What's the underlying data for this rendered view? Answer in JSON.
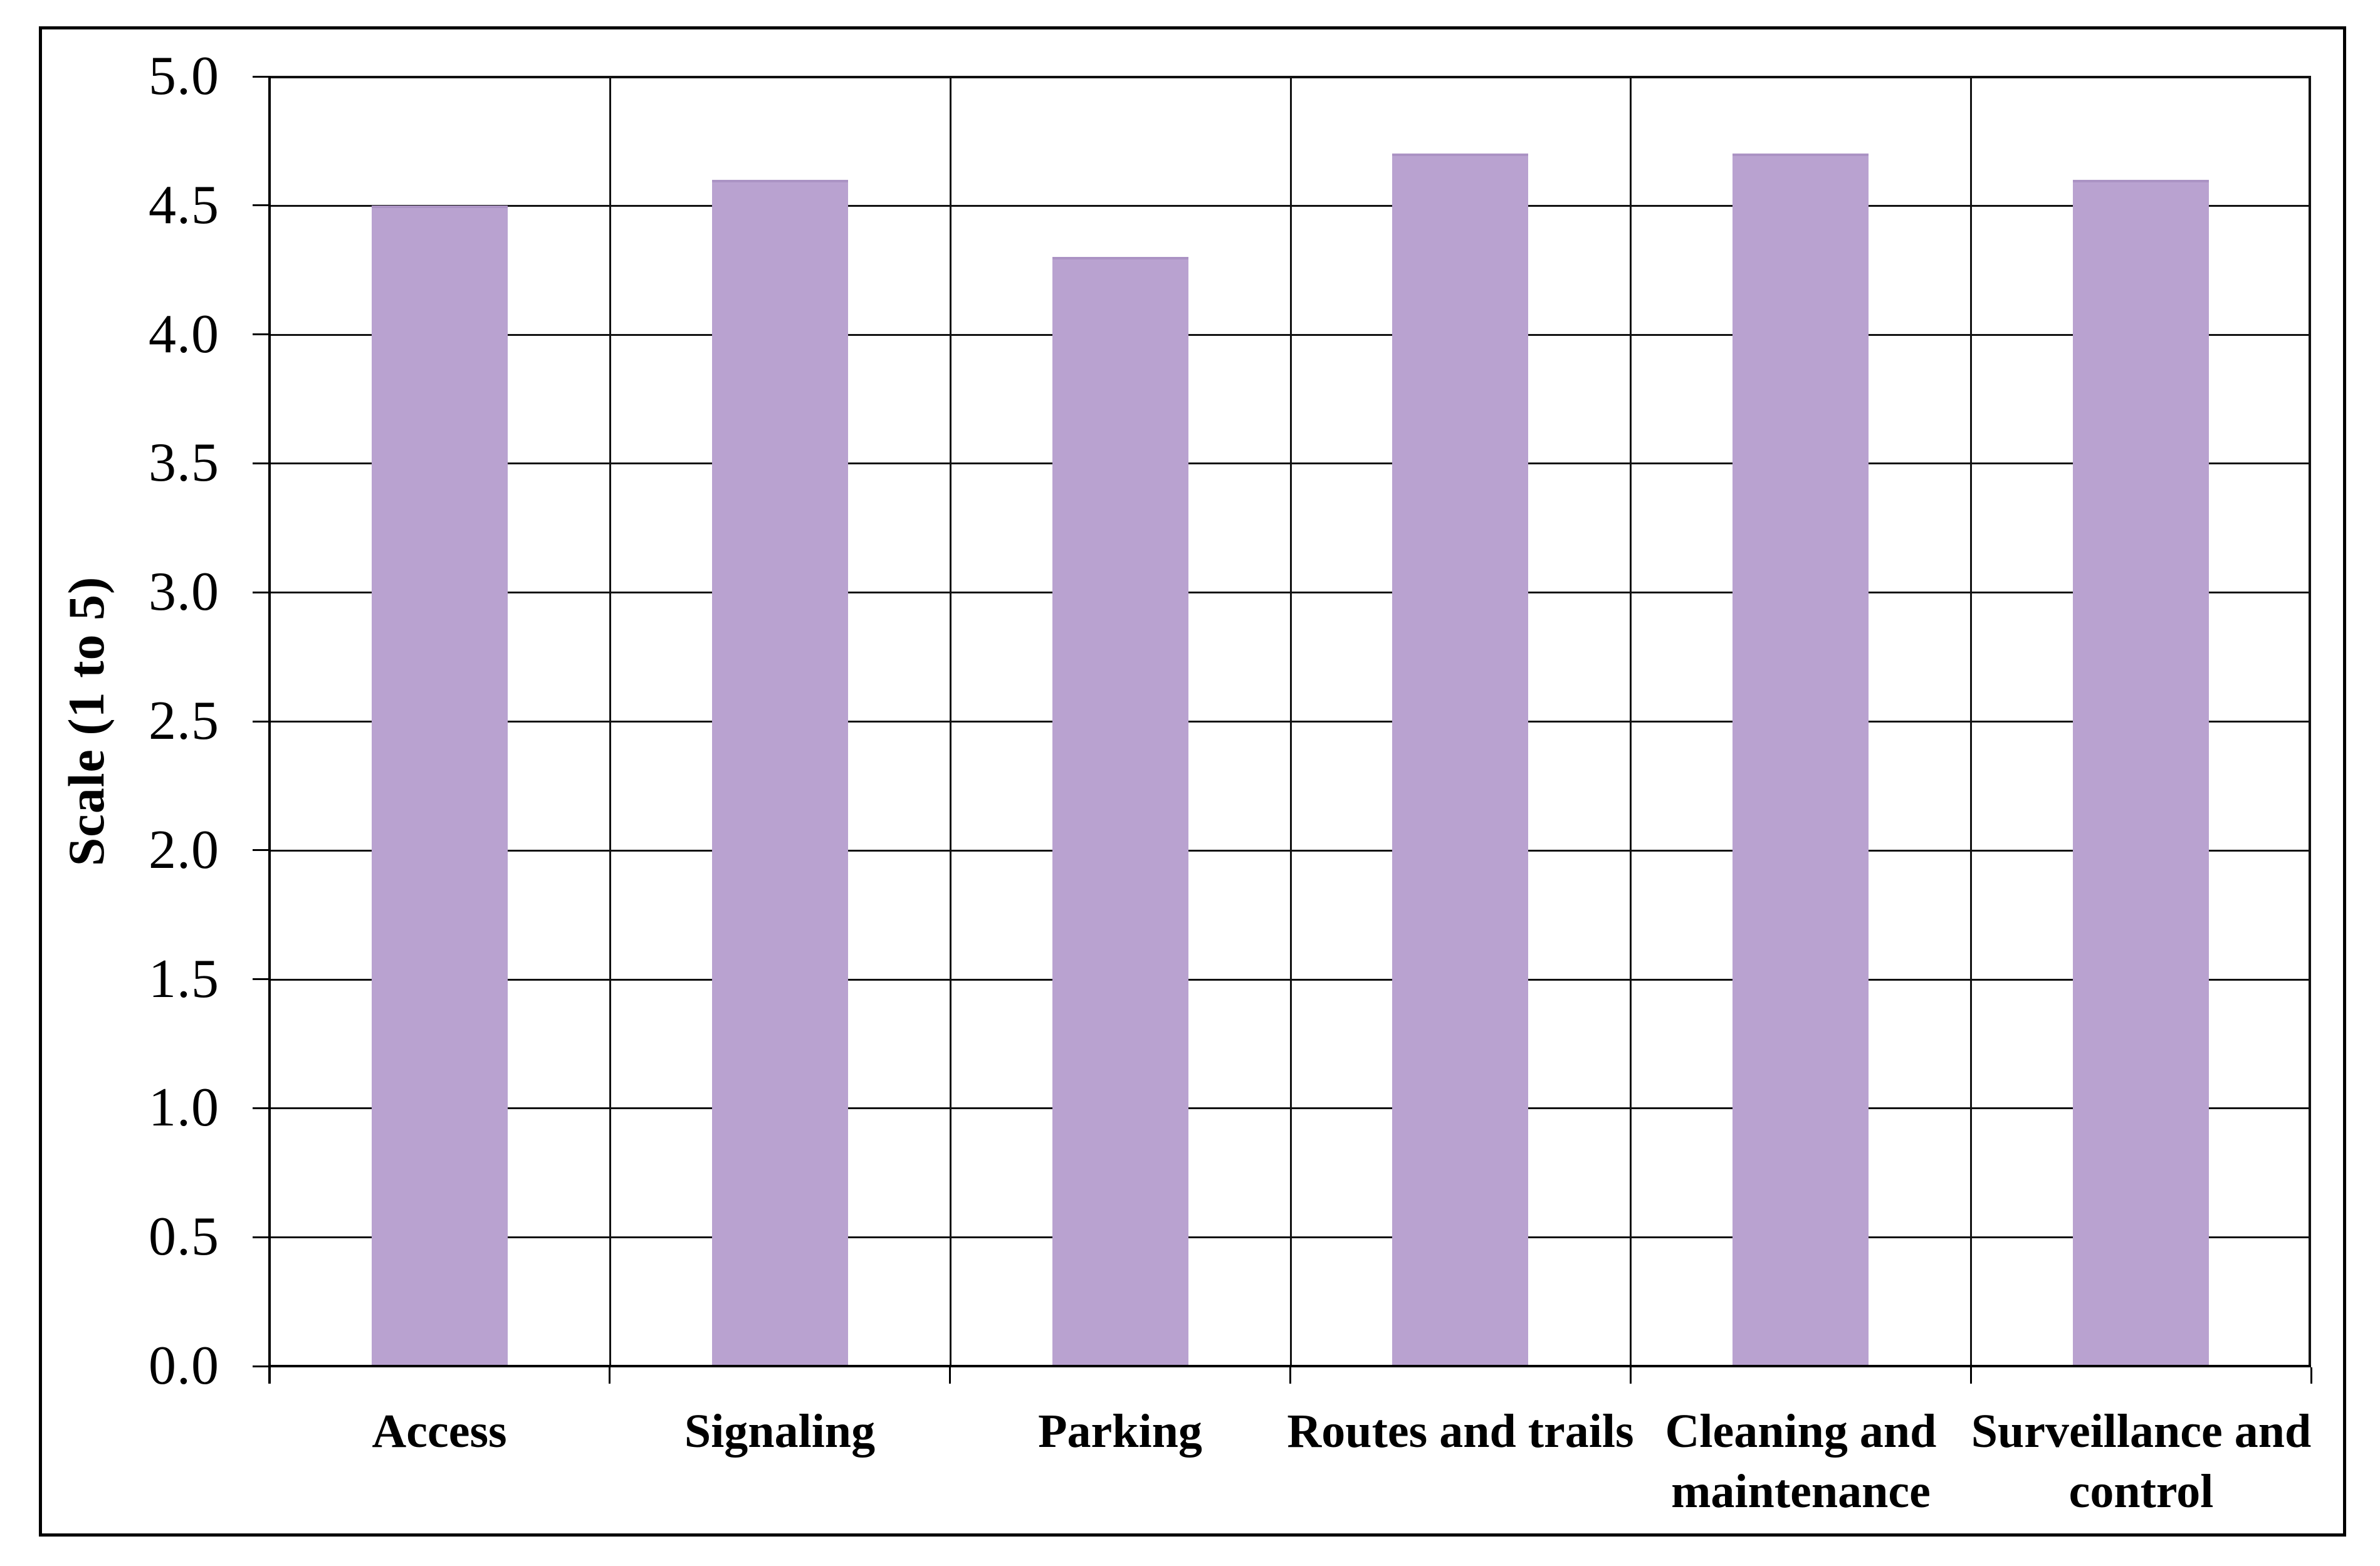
{
  "figure": {
    "background": "#ffffff",
    "frame_border_color": "#000000"
  },
  "chart_data": {
    "type": "bar",
    "title": "",
    "categories": [
      "Access",
      "Signaling",
      "Parking",
      "Routes and trails",
      "Cleaning and maintenance",
      "Surveillance and control"
    ],
    "values": [
      4.5,
      4.6,
      4.3,
      4.7,
      4.7,
      4.6
    ],
    "xlabel": "",
    "ylabel": "Scale (1 to 5)",
    "ylim": [
      0.0,
      5.0
    ],
    "ytick_interval": 0.5,
    "ytick_labels": [
      "5.0",
      "4.5",
      "4.0",
      "3.5",
      "3.0",
      "2.5",
      "2.0",
      "1.5",
      "1.0",
      "0.5",
      "0.0"
    ],
    "grid": "horizontal-and-vertical",
    "legend_position": "none",
    "bar_fill_color": "#b9a2d0",
    "bar_edge_color": "#ab93c4",
    "gridline_color": "#111111",
    "axis_color": "#000000"
  }
}
